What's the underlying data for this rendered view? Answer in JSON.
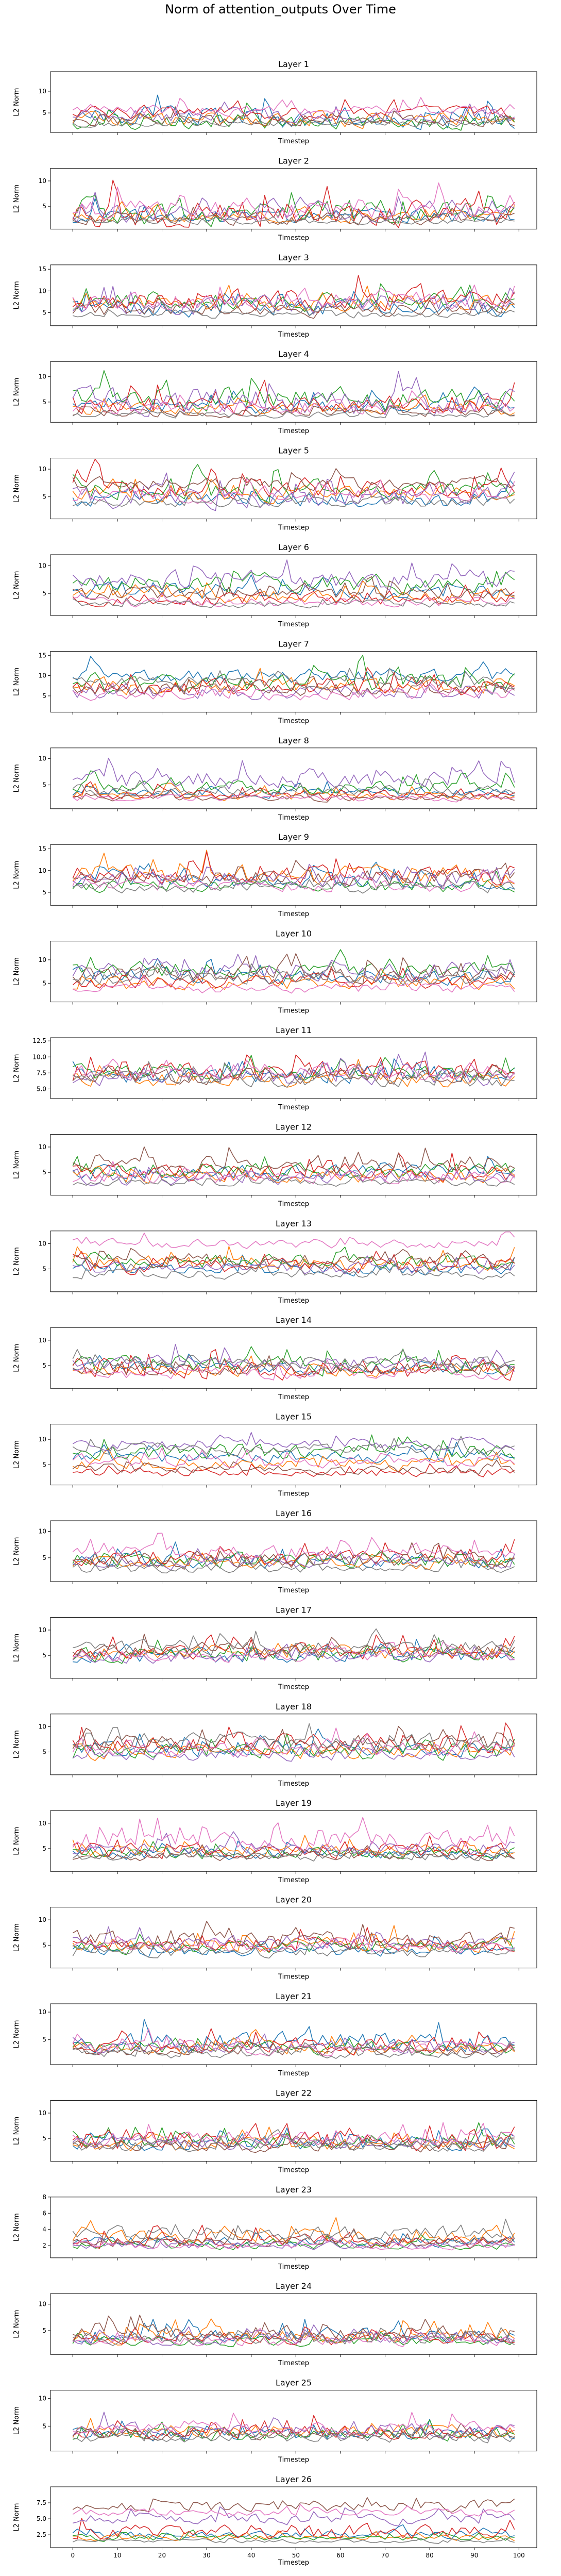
{
  "figure": {
    "title": "Norm of attention_outputs Over Time",
    "colors": [
      "#1f77b4",
      "#ff7f0e",
      "#2ca02c",
      "#d62728",
      "#9467bd",
      "#8c564b",
      "#e377c2",
      "#7f7f7f"
    ]
  },
  "chart_data": {
    "type": "line",
    "title": "Norm of attention_outputs Over Time",
    "x_range": [
      0,
      99
    ],
    "xlim": [
      -5,
      104
    ],
    "x_ticks": [
      0,
      10,
      20,
      30,
      40,
      50,
      60,
      70,
      80,
      90,
      100
    ],
    "xlabel": "Timestep",
    "ylabel": "L2 Norm",
    "n_series": 8,
    "grid": false,
    "legend": "none",
    "panels": [
      {
        "title": "Layer 1",
        "ylim": [
          0.5,
          14.5
        ],
        "yticks": [
          5,
          10
        ],
        "ytick_labels": [
          "5",
          "10"
        ],
        "base": [
          4.0,
          3.5,
          3.0,
          5.0,
          4.2,
          3.2,
          5.5,
          2.5
        ],
        "amp": [
          4.5,
          3.0,
          3.0,
          2.5,
          2.5,
          2.0,
          2.0,
          1.2
        ]
      },
      {
        "title": "Layer 2",
        "ylim": [
          0.5,
          12.5
        ],
        "yticks": [
          5,
          10
        ],
        "ytick_labels": [
          "5",
          "10"
        ],
        "base": [
          3.0,
          3.0,
          4.0,
          3.5,
          3.5,
          2.5,
          4.0,
          2.0
        ],
        "amp": [
          2.5,
          2.0,
          4.5,
          4.5,
          3.0,
          2.0,
          3.5,
          1.0
        ]
      },
      {
        "title": "Layer 3",
        "ylim": [
          2.0,
          16.0
        ],
        "yticks": [
          5,
          10,
          15
        ],
        "ytick_labels": [
          "5",
          "10",
          "15"
        ],
        "base": [
          6.0,
          7.0,
          7.5,
          8.0,
          6.5,
          5.5,
          7.5,
          4.5
        ],
        "amp": [
          3.5,
          3.0,
          3.5,
          4.0,
          3.5,
          2.5,
          3.0,
          1.5
        ]
      },
      {
        "title": "Layer 4",
        "ylim": [
          1.0,
          13.0
        ],
        "yticks": [
          5,
          10
        ],
        "ytick_labels": [
          "5",
          "10"
        ],
        "base": [
          4.0,
          3.5,
          5.5,
          4.5,
          5.0,
          3.0,
          4.0,
          2.5
        ],
        "amp": [
          2.5,
          2.0,
          4.0,
          3.0,
          4.5,
          1.5,
          2.5,
          1.0
        ]
      },
      {
        "title": "Layer 5",
        "ylim": [
          1.0,
          12.0
        ],
        "yticks": [
          5,
          10
        ],
        "ytick_labels": [
          "5",
          "10"
        ],
        "base": [
          4.5,
          5.5,
          6.0,
          6.5,
          5.0,
          7.5,
          5.5,
          4.0
        ],
        "amp": [
          2.5,
          2.5,
          3.0,
          3.0,
          3.5,
          2.0,
          2.5,
          1.5
        ]
      },
      {
        "title": "Layer 6",
        "ylim": [
          1.0,
          12.0
        ],
        "yticks": [
          5,
          10
        ],
        "ytick_labels": [
          "5",
          "10"
        ],
        "base": [
          5.5,
          4.5,
          6.5,
          4.0,
          7.5,
          5.0,
          3.5,
          3.0
        ],
        "amp": [
          2.5,
          2.0,
          2.5,
          2.0,
          3.0,
          2.0,
          1.5,
          1.0
        ]
      },
      {
        "title": "Layer 7",
        "ylim": [
          1.0,
          16.0
        ],
        "yticks": [
          5,
          10,
          15
        ],
        "ytick_labels": [
          "5",
          "10",
          "15"
        ],
        "base": [
          10.0,
          7.5,
          8.0,
          7.0,
          6.0,
          6.5,
          5.5,
          8.5
        ],
        "amp": [
          3.0,
          3.5,
          4.0,
          3.5,
          3.0,
          3.0,
          2.5,
          2.5
        ]
      },
      {
        "title": "Layer 8",
        "ylim": [
          0.5,
          12.0
        ],
        "yticks": [
          5,
          10
        ],
        "ytick_labels": [
          "5",
          "10"
        ],
        "base": [
          3.5,
          3.0,
          4.5,
          3.0,
          6.0,
          2.5,
          2.5,
          4.0
        ],
        "amp": [
          1.5,
          1.5,
          2.0,
          1.5,
          3.0,
          1.0,
          1.0,
          1.5
        ]
      },
      {
        "title": "Layer 9",
        "ylim": [
          2.0,
          16.0
        ],
        "yticks": [
          5,
          10,
          15
        ],
        "ytick_labels": [
          "5",
          "10",
          "15"
        ],
        "base": [
          7.5,
          9.0,
          6.5,
          9.0,
          8.0,
          8.5,
          6.5,
          6.0
        ],
        "amp": [
          3.0,
          4.0,
          2.5,
          3.5,
          3.0,
          3.0,
          2.5,
          2.0
        ]
      },
      {
        "title": "Layer 10",
        "ylim": [
          1.0,
          14.0
        ],
        "yticks": [
          5,
          10
        ],
        "ytick_labels": [
          "5",
          "10"
        ],
        "base": [
          6.5,
          5.0,
          8.0,
          5.5,
          7.5,
          7.0,
          4.0,
          6.0
        ],
        "amp": [
          3.0,
          2.5,
          3.0,
          2.5,
          3.5,
          3.0,
          2.0,
          2.5
        ]
      },
      {
        "title": "Layer 11",
        "ylim": [
          3.5,
          13.0
        ],
        "yticks": [
          5.0,
          7.5,
          10.0,
          12.5
        ],
        "ytick_labels": [
          "5.0",
          "7.5",
          "10.0",
          "12.5"
        ],
        "base": [
          7.0,
          6.5,
          7.5,
          7.5,
          7.0,
          7.0,
          7.5,
          6.5
        ],
        "amp": [
          2.0,
          2.0,
          2.0,
          2.5,
          2.5,
          2.0,
          2.0,
          2.0
        ]
      },
      {
        "title": "Layer 12",
        "ylim": [
          0.5,
          12.5
        ],
        "yticks": [
          5,
          10
        ],
        "ytick_labels": [
          "5",
          "10"
        ],
        "base": [
          5.0,
          4.5,
          5.5,
          5.0,
          4.0,
          6.5,
          4.0,
          3.0
        ],
        "amp": [
          2.5,
          2.5,
          2.5,
          3.0,
          2.5,
          3.0,
          2.0,
          1.5
        ]
      },
      {
        "title": "Layer 13",
        "ylim": [
          0.5,
          12.5
        ],
        "yticks": [
          5,
          10
        ],
        "ytick_labels": [
          "5",
          "10"
        ],
        "base": [
          5.0,
          6.0,
          6.5,
          5.5,
          5.0,
          6.5,
          10.0,
          4.0
        ],
        "amp": [
          2.0,
          2.5,
          2.5,
          2.5,
          2.0,
          2.5,
          1.5,
          1.5
        ]
      },
      {
        "title": "Layer 14",
        "ylim": [
          0.5,
          12.5
        ],
        "yticks": [
          5,
          10
        ],
        "ytick_labels": [
          "5",
          "10"
        ],
        "base": [
          4.5,
          4.0,
          5.0,
          4.5,
          5.5,
          4.0,
          3.5,
          5.5
        ],
        "amp": [
          2.0,
          2.0,
          3.0,
          3.5,
          2.5,
          2.0,
          2.0,
          2.0
        ]
      },
      {
        "title": "Layer 15",
        "ylim": [
          1.0,
          13.0
        ],
        "yticks": [
          5,
          10
        ],
        "ytick_labels": [
          "5",
          "10"
        ],
        "base": [
          6.5,
          5.0,
          7.5,
          3.5,
          9.0,
          4.0,
          5.5,
          8.0
        ],
        "amp": [
          2.0,
          2.0,
          2.5,
          1.5,
          2.0,
          1.5,
          2.0,
          2.0
        ]
      },
      {
        "title": "Layer 16",
        "ylim": [
          0.5,
          12.0
        ],
        "yticks": [
          5,
          10
        ],
        "ytick_labels": [
          "5",
          "10"
        ],
        "base": [
          4.5,
          4.0,
          4.5,
          5.0,
          4.0,
          4.5,
          6.0,
          3.0
        ],
        "amp": [
          2.5,
          2.0,
          2.5,
          2.5,
          2.0,
          2.5,
          2.5,
          1.5
        ]
      },
      {
        "title": "Layer 17",
        "ylim": [
          0.5,
          12.5
        ],
        "yticks": [
          5,
          10
        ],
        "ytick_labels": [
          "5",
          "10"
        ],
        "base": [
          5.0,
          5.5,
          5.0,
          5.5,
          4.5,
          6.0,
          5.0,
          6.5
        ],
        "amp": [
          2.5,
          2.5,
          2.5,
          2.5,
          2.0,
          2.5,
          2.0,
          2.5
        ]
      },
      {
        "title": "Layer 18",
        "ylim": [
          0.5,
          12.5
        ],
        "yticks": [
          5,
          10
        ],
        "ytick_labels": [
          "5",
          "10"
        ],
        "base": [
          5.5,
          5.0,
          5.0,
          6.5,
          4.5,
          6.5,
          5.5,
          7.0
        ],
        "amp": [
          2.5,
          2.5,
          2.5,
          3.0,
          2.0,
          3.0,
          2.5,
          3.0
        ]
      },
      {
        "title": "Layer 19",
        "ylim": [
          0.5,
          12.5
        ],
        "yticks": [
          5,
          10
        ],
        "ytick_labels": [
          "5",
          "10"
        ],
        "base": [
          4.0,
          4.5,
          4.0,
          4.5,
          5.0,
          3.5,
          6.5,
          3.5
        ],
        "amp": [
          2.0,
          2.0,
          2.0,
          2.5,
          2.0,
          1.5,
          3.5,
          1.5
        ]
      },
      {
        "title": "Layer 20",
        "ylim": [
          0.5,
          12.5
        ],
        "yticks": [
          5,
          10
        ],
        "ytick_labels": [
          "5",
          "10"
        ],
        "base": [
          4.0,
          5.0,
          4.5,
          5.0,
          5.5,
          6.0,
          4.5,
          3.5
        ],
        "amp": [
          2.0,
          2.5,
          2.0,
          2.5,
          2.5,
          3.0,
          2.0,
          1.5
        ]
      },
      {
        "title": "Layer 21",
        "ylim": [
          0.5,
          11.5
        ],
        "yticks": [
          5,
          10
        ],
        "ytick_labels": [
          "5",
          "10"
        ],
        "base": [
          4.5,
          3.5,
          3.5,
          4.0,
          3.5,
          3.0,
          3.5,
          2.5
        ],
        "amp": [
          3.0,
          2.0,
          2.0,
          2.5,
          2.0,
          1.5,
          2.0,
          1.5
        ]
      },
      {
        "title": "Layer 22",
        "ylim": [
          0.5,
          12.5
        ],
        "yticks": [
          5,
          10
        ],
        "ytick_labels": [
          "5",
          "10"
        ],
        "base": [
          4.0,
          4.0,
          4.5,
          4.5,
          4.0,
          3.5,
          5.0,
          3.5
        ],
        "amp": [
          2.5,
          2.5,
          2.5,
          3.5,
          2.0,
          2.0,
          2.5,
          2.0
        ]
      },
      {
        "title": "Layer 23",
        "ylim": [
          0.5,
          8.0
        ],
        "yticks": [
          2,
          4,
          6,
          8
        ],
        "ytick_labels": [
          "2",
          "4",
          "6",
          "8"
        ],
        "base": [
          2.5,
          3.0,
          2.0,
          2.5,
          2.0,
          2.5,
          2.0,
          3.5
        ],
        "amp": [
          1.0,
          1.5,
          0.8,
          1.5,
          0.8,
          1.0,
          0.8,
          1.5
        ]
      },
      {
        "title": "Layer 24",
        "ylim": [
          0.5,
          12.0
        ],
        "yticks": [
          5,
          10
        ],
        "ytick_labels": [
          "5",
          "10"
        ],
        "base": [
          4.0,
          4.0,
          3.0,
          3.5,
          3.5,
          4.5,
          3.0,
          3.5
        ],
        "amp": [
          2.5,
          2.5,
          1.5,
          2.0,
          2.0,
          2.5,
          1.5,
          2.0
        ]
      },
      {
        "title": "Layer 25",
        "ylim": [
          0.5,
          11.5
        ],
        "yticks": [
          5,
          10
        ],
        "ytick_labels": [
          "5",
          "10"
        ],
        "base": [
          3.5,
          4.0,
          3.5,
          4.0,
          4.0,
          3.5,
          4.5,
          3.0
        ],
        "amp": [
          2.0,
          2.0,
          2.0,
          2.0,
          2.5,
          1.5,
          2.0,
          1.5
        ]
      },
      {
        "title": "Layer 26",
        "ylim": [
          0.5,
          10.0
        ],
        "yticks": [
          2.5,
          5.0,
          7.5
        ],
        "ytick_labels": [
          "2.5",
          "5.0",
          "7.5"
        ],
        "base": [
          2.5,
          2.0,
          2.0,
          3.0,
          5.0,
          7.0,
          6.0,
          1.5
        ],
        "amp": [
          1.0,
          0.8,
          0.8,
          2.0,
          1.5,
          1.5,
          1.0,
          0.5
        ]
      }
    ]
  }
}
